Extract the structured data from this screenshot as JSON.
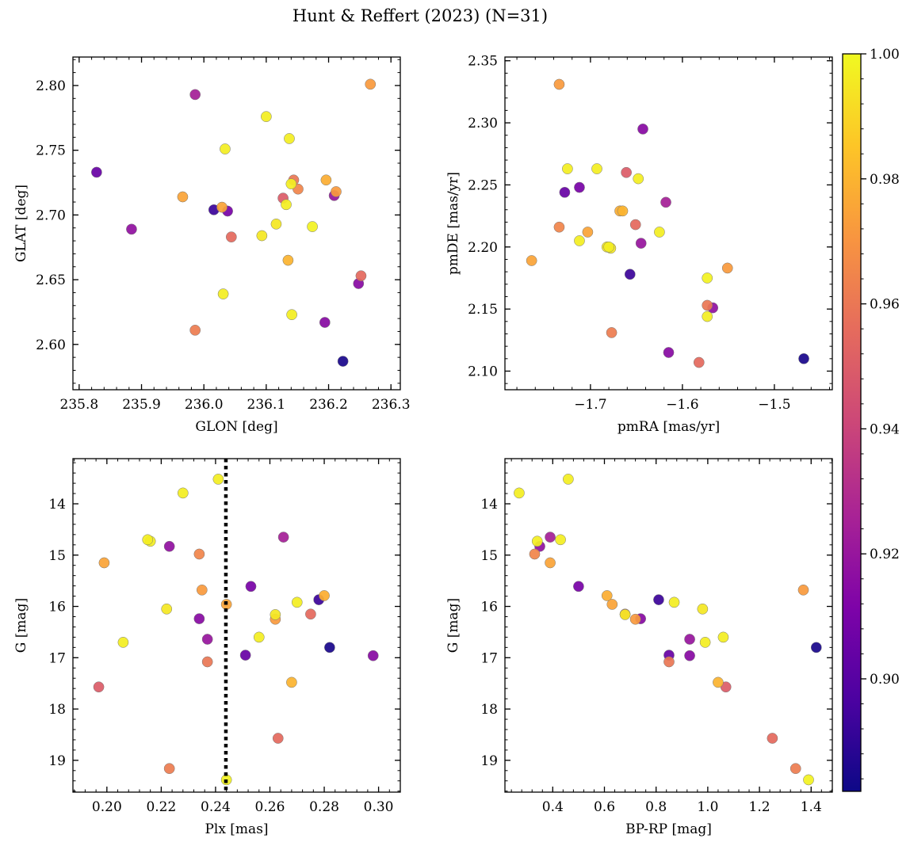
{
  "chart_data": {
    "title": "Hunt & Reffert (2023) (N=31)",
    "type": "scatter",
    "colorbar": {
      "colormap": "plasma",
      "range": [
        0.882,
        1.0
      ],
      "ticks": [
        0.9,
        0.92,
        0.94,
        0.96,
        0.98,
        1.0
      ],
      "tick_labels": [
        "0.90",
        "0.92",
        "0.94",
        "0.96",
        "0.98",
        "1.00"
      ]
    },
    "stars": [
      {
        "glon": 235.828,
        "glat": 2.733,
        "pmra": -1.728,
        "pmde": 2.244,
        "plx": 0.251,
        "g": 16.95,
        "bprp": 0.85,
        "prob": 0.905
      },
      {
        "glon": 235.884,
        "glat": 2.689,
        "pmra": -1.567,
        "pmde": 2.151,
        "plx": 0.223,
        "g": 14.83,
        "bprp": 0.35,
        "prob": 0.918
      },
      {
        "glon": 235.966,
        "glat": 2.714,
        "pmra": -1.764,
        "pmde": 2.189,
        "plx": 0.199,
        "g": 15.15,
        "bprp": 0.39,
        "prob": 0.975
      },
      {
        "glon": 235.986,
        "glat": 2.793,
        "pmra": -1.618,
        "pmde": 2.236,
        "plx": 0.265,
        "g": 14.65,
        "bprp": 0.39,
        "prob": 0.925
      },
      {
        "glon": 235.986,
        "glat": 2.611,
        "pmra": -1.677,
        "pmde": 2.131,
        "plx": 0.223,
        "g": 19.16,
        "bprp": 1.34,
        "prob": 0.962
      },
      {
        "glon": 236.016,
        "glat": 2.704,
        "pmra": -1.657,
        "pmde": 2.178,
        "plx": 0.278,
        "g": 15.87,
        "bprp": 0.81,
        "prob": 0.893
      },
      {
        "glon": 236.029,
        "glat": 2.706,
        "pmra": -1.703,
        "pmde": 2.212,
        "plx": 0.244,
        "g": 15.96,
        "bprp": 0.63,
        "prob": 0.975
      },
      {
        "glon": 236.031,
        "glat": 2.639,
        "pmra": -1.68,
        "pmde": 2.2,
        "plx": 0.256,
        "g": 16.6,
        "bprp": 1.06,
        "prob": 0.997
      },
      {
        "glon": 236.034,
        "glat": 2.751,
        "pmra": -1.712,
        "pmde": 2.205,
        "plx": 0.216,
        "g": 14.73,
        "bprp": 0.34,
        "prob": 0.997
      },
      {
        "glon": 236.038,
        "glat": 2.703,
        "pmra": -1.712,
        "pmde": 2.248,
        "plx": 0.253,
        "g": 15.61,
        "bprp": 0.5,
        "prob": 0.91
      },
      {
        "glon": 236.044,
        "glat": 2.683,
        "pmra": -1.651,
        "pmde": 2.218,
        "plx": 0.275,
        "g": 16.15,
        "bprp": 0.68,
        "prob": 0.955
      },
      {
        "glon": 236.093,
        "glat": 2.684,
        "pmra": -1.678,
        "pmde": 2.199,
        "plx": 0.222,
        "g": 16.05,
        "bprp": 0.98,
        "prob": 0.995
      },
      {
        "glon": 236.1,
        "glat": 2.776,
        "pmra": -1.725,
        "pmde": 2.263,
        "plx": 0.206,
        "g": 16.7,
        "bprp": 0.99,
        "prob": 0.997
      },
      {
        "glon": 236.116,
        "glat": 2.693,
        "pmra": -1.682,
        "pmde": 2.2,
        "plx": 0.262,
        "g": 16.16,
        "bprp": 0.68,
        "prob": 0.995
      },
      {
        "glon": 236.127,
        "glat": 2.713,
        "pmra": -1.661,
        "pmde": 2.26,
        "plx": 0.197,
        "g": 17.57,
        "bprp": 1.07,
        "prob": 0.95
      },
      {
        "glon": 236.132,
        "glat": 2.708,
        "pmra": -1.693,
        "pmde": 2.263,
        "plx": 0.215,
        "g": 14.7,
        "bprp": 0.43,
        "prob": 0.997
      },
      {
        "glon": 236.135,
        "glat": 2.665,
        "pmra": -1.665,
        "pmde": 2.229,
        "plx": 0.268,
        "g": 17.48,
        "bprp": 1.04,
        "prob": 0.98
      },
      {
        "glon": 236.137,
        "glat": 2.759,
        "pmra": -1.648,
        "pmde": 2.255,
        "plx": 0.228,
        "g": 13.79,
        "bprp": 0.27,
        "prob": 0.997
      },
      {
        "glon": 236.14,
        "glat": 2.724,
        "pmra": -1.625,
        "pmde": 2.212,
        "plx": 0.27,
        "g": 15.92,
        "bprp": 0.87,
        "prob": 0.997
      },
      {
        "glon": 236.141,
        "glat": 2.623,
        "pmra": -1.573,
        "pmde": 2.144,
        "plx": 0.241,
        "g": 13.52,
        "bprp": 0.46,
        "prob": 0.997
      },
      {
        "glon": 236.144,
        "glat": 2.727,
        "pmra": -1.573,
        "pmde": 2.153,
        "plx": 0.237,
        "g": 17.08,
        "bprp": 0.85,
        "prob": 0.96
      },
      {
        "glon": 236.151,
        "glat": 2.72,
        "pmra": -1.734,
        "pmde": 2.216,
        "plx": 0.234,
        "g": 14.98,
        "bprp": 0.33,
        "prob": 0.965
      },
      {
        "glon": 236.174,
        "glat": 2.691,
        "pmra": -1.573,
        "pmde": 2.175,
        "plx": 0.244,
        "g": 19.38,
        "bprp": 1.39,
        "prob": 0.998
      },
      {
        "glon": 236.194,
        "glat": 2.617,
        "pmra": -1.615,
        "pmde": 2.115,
        "plx": 0.234,
        "g": 16.24,
        "bprp": 0.74,
        "prob": 0.915
      },
      {
        "glon": 236.196,
        "glat": 2.727,
        "pmra": -1.668,
        "pmde": 2.229,
        "plx": 0.28,
        "g": 15.79,
        "bprp": 0.61,
        "prob": 0.978
      },
      {
        "glon": 236.209,
        "glat": 2.715,
        "pmra": -1.645,
        "pmde": 2.203,
        "plx": 0.237,
        "g": 16.64,
        "bprp": 0.93,
        "prob": 0.92
      },
      {
        "glon": 236.212,
        "glat": 2.718,
        "pmra": -1.551,
        "pmde": 2.183,
        "plx": 0.235,
        "g": 15.68,
        "bprp": 1.37,
        "prob": 0.972
      },
      {
        "glon": 236.223,
        "glat": 2.587,
        "pmra": -1.468,
        "pmde": 2.11,
        "plx": 0.282,
        "g": 16.8,
        "bprp": 1.42,
        "prob": 0.885
      },
      {
        "glon": 236.248,
        "glat": 2.647,
        "pmra": -1.643,
        "pmde": 2.295,
        "plx": 0.298,
        "g": 16.96,
        "bprp": 0.93,
        "prob": 0.915
      },
      {
        "glon": 236.252,
        "glat": 2.653,
        "pmra": -1.582,
        "pmde": 2.107,
        "plx": 0.263,
        "g": 18.57,
        "bprp": 1.25,
        "prob": 0.955
      },
      {
        "glon": 236.267,
        "glat": 2.801,
        "pmra": -1.734,
        "pmde": 2.331,
        "plx": 0.262,
        "g": 16.25,
        "bprp": 0.72,
        "prob": 0.972
      }
    ],
    "panels": [
      {
        "name": "sky",
        "x": "glon",
        "y": "glat",
        "xlabel": "GLON [deg]",
        "ylabel": "GLAT [deg]",
        "xlim": [
          235.79,
          236.315
        ],
        "ylim": [
          2.565,
          2.822
        ],
        "y_inverted": false,
        "xticks": [
          235.8,
          235.9,
          236.0,
          236.1,
          236.2,
          236.3
        ],
        "xtick_labels": [
          "235.8",
          "235.9",
          "236.0",
          "236.1",
          "236.2",
          "236.3"
        ],
        "yticks": [
          2.6,
          2.65,
          2.7,
          2.75,
          2.8
        ],
        "ytick_labels": [
          "2.60",
          "2.65",
          "2.70",
          "2.75",
          "2.80"
        ]
      },
      {
        "name": "proper-motion",
        "x": "pmra",
        "y": "pmde",
        "xlabel": "pmRA [mas/yr]",
        "ylabel": "pmDE [mas/yr]",
        "xlim": [
          -1.793,
          -1.437
        ],
        "ylim": [
          2.085,
          2.353
        ],
        "y_inverted": false,
        "xticks": [
          -1.7,
          -1.6,
          -1.5
        ],
        "xtick_labels": [
          "−1.7",
          "−1.6",
          "−1.5"
        ],
        "yticks": [
          2.1,
          2.15,
          2.2,
          2.25,
          2.3,
          2.35
        ],
        "ytick_labels": [
          "2.10",
          "2.15",
          "2.20",
          "2.25",
          "2.30",
          "2.35"
        ]
      },
      {
        "name": "parallax-mag",
        "x": "plx",
        "y": "g",
        "xlabel": "Plx [mas]",
        "ylabel": "G [mag]",
        "xlim": [
          0.1875,
          0.308
        ],
        "ylim": [
          13.12,
          19.62
        ],
        "y_inverted": true,
        "xticks": [
          0.2,
          0.22,
          0.24,
          0.26,
          0.28,
          0.3
        ],
        "xtick_labels": [
          "0.20",
          "0.22",
          "0.24",
          "0.26",
          "0.28",
          "0.30"
        ],
        "yticks": [
          14,
          15,
          16,
          17,
          18,
          19
        ],
        "ytick_labels": [
          "14",
          "15",
          "16",
          "17",
          "18",
          "19"
        ],
        "vline": 0.2438
      },
      {
        "name": "cmd",
        "x": "bprp",
        "y": "g",
        "xlabel": "BP-RP [mag]",
        "ylabel": "G [mag]",
        "xlim": [
          0.215,
          1.482
        ],
        "ylim": [
          13.12,
          19.62
        ],
        "y_inverted": true,
        "xticks": [
          0.4,
          0.6,
          0.8,
          1.0,
          1.2,
          1.4
        ],
        "xtick_labels": [
          "0.4",
          "0.6",
          "0.8",
          "1.0",
          "1.2",
          "1.4"
        ],
        "yticks": [
          14,
          15,
          16,
          17,
          18,
          19
        ],
        "ytick_labels": [
          "14",
          "15",
          "16",
          "17",
          "18",
          "19"
        ]
      }
    ]
  }
}
